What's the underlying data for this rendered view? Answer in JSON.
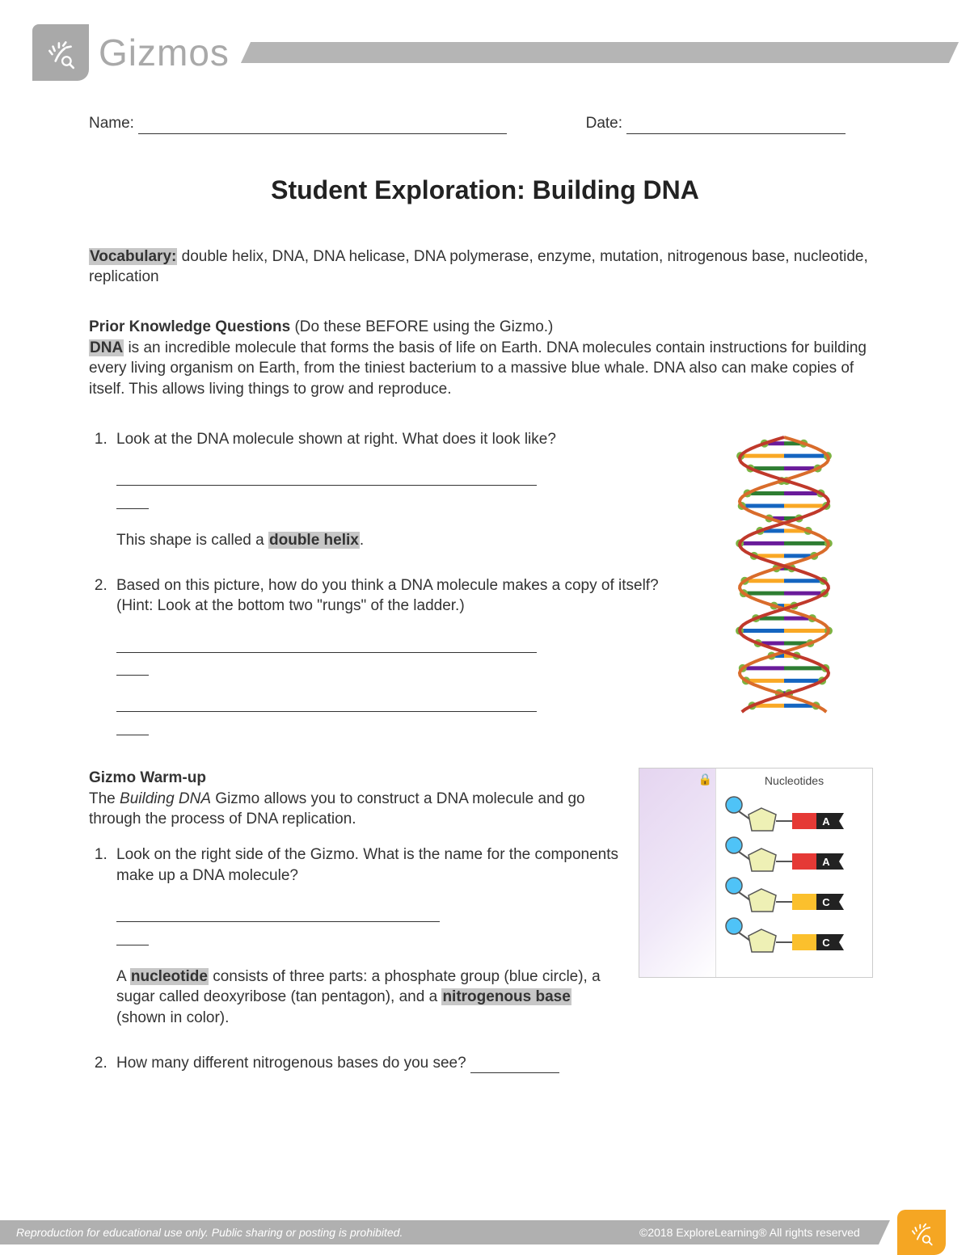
{
  "brand": "Gizmos",
  "header": {
    "name_label": "Name:",
    "date_label": "Date:"
  },
  "title": "Student Exploration: Building DNA",
  "vocab": {
    "label": "Vocabulary:",
    "terms": "double helix, DNA, DNA helicase, DNA polymerase, enzyme, mutation, nitrogenous base, nucleotide, replication"
  },
  "prior": {
    "heading": "Prior Knowledge Questions",
    "note": "(Do these BEFORE using the Gizmo.)",
    "dna_label": "DNA",
    "intro_rest": " is an incredible molecule that forms the basis of life on Earth. DNA molecules contain instructions for building every living organism on Earth, from the tiniest bacterium to a massive blue whale. DNA also can make copies of itself. This allows living things to grow and reproduce.",
    "q1": "Look at the DNA molecule shown at right. What does it look like?",
    "shape_pre": "This shape is called a ",
    "shape_term": "double helix",
    "q2": "Based on this picture, how do you think a DNA molecule makes a copy of itself? (Hint: Look at the bottom two \"rungs\" of the ladder.)"
  },
  "warmup": {
    "heading": "Gizmo Warm-up",
    "intro_pre": "The ",
    "intro_ital": "Building DNA",
    "intro_post": " Gizmo allows you to construct a DNA molecule and go through the process of DNA replication.",
    "q1": "Look on the right side of the Gizmo. What is the name for the components make up a DNA molecule?",
    "nuc_pre": "A ",
    "nuc_term": "nucleotide",
    "nuc_mid": " consists of three parts: a phosphate group (blue circle), a sugar called deoxyribose (tan pentagon), and a ",
    "base_term": "nitrogenous base",
    "nuc_post": " (shown in color).",
    "q2": "How many different nitrogenous bases do you see? "
  },
  "nuc_panel": {
    "title": "Nucleotides",
    "items": [
      {
        "label": "A",
        "color1": "#e53935",
        "color2": "#222"
      },
      {
        "label": "A",
        "color1": "#e53935",
        "color2": "#222"
      },
      {
        "label": "C",
        "color1": "#fbc02d",
        "color2": "#222"
      },
      {
        "label": "C",
        "color1": "#fbc02d",
        "color2": "#222"
      }
    ],
    "phosphate_color": "#4fc3f7",
    "sugar_color": "#eef0b5",
    "stroke": "#555"
  },
  "helix": {
    "backbone_colors": [
      "#d96c2b",
      "#c0392b"
    ],
    "base_colors": [
      "#2e7d32",
      "#1565c0",
      "#6a1b9a",
      "#f9a825"
    ],
    "highlight": "#7cb342"
  },
  "footer": {
    "left": "Reproduction for educational use only. Public sharing or posting is prohibited.",
    "right": "©2018 ExploreLearning® All rights reserved"
  }
}
